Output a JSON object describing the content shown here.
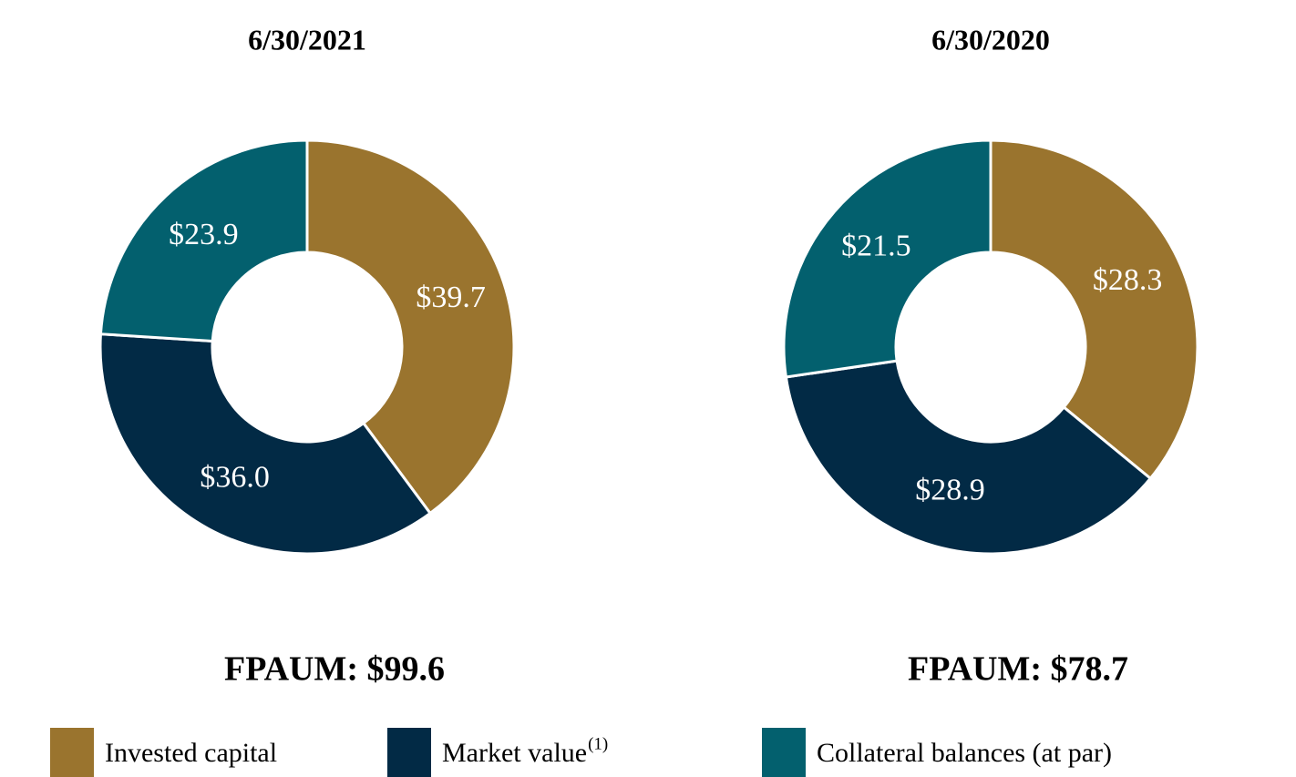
{
  "chart_data": [
    {
      "type": "donut",
      "title": "6/30/2021",
      "categories": [
        "Invested capital",
        "Market value",
        "Collateral balances (at par)"
      ],
      "values": [
        39.7,
        36.0,
        23.9
      ],
      "value_labels": [
        "$39.7",
        "$36.0",
        "$23.9"
      ],
      "colors": [
        "#9a742e",
        "#022a45",
        "#03606e"
      ],
      "total_label": "FPAUM: $99.6"
    },
    {
      "type": "donut",
      "title": "6/30/2020",
      "categories": [
        "Invested capital",
        "Market value",
        "Collateral balances (at par)"
      ],
      "values": [
        28.3,
        28.9,
        21.5
      ],
      "value_labels": [
        "$28.3",
        "$28.9",
        "$21.5"
      ],
      "colors": [
        "#9a742e",
        "#022a45",
        "#03606e"
      ],
      "total_label": "FPAUM: $78.7"
    }
  ],
  "legend": {
    "footnote": "(1)"
  }
}
